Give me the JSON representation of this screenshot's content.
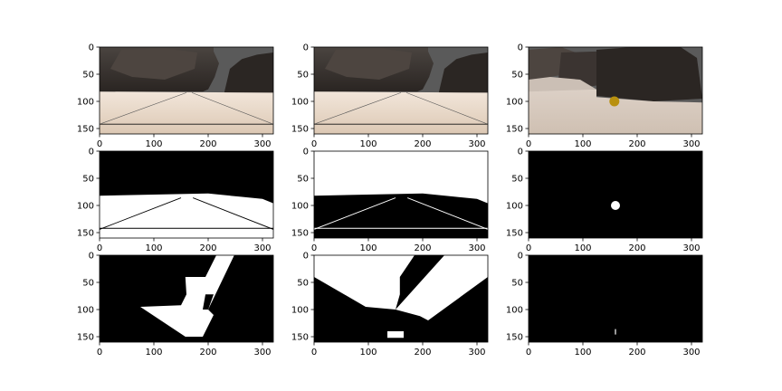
{
  "figure": {
    "panels": [
      {
        "row": 0,
        "col": 0,
        "content": "terrain-photo",
        "variant": "straight-grid"
      },
      {
        "row": 0,
        "col": 1,
        "content": "terrain-photo",
        "variant": "straight-grid"
      },
      {
        "row": 0,
        "col": 2,
        "content": "terrain-photo",
        "variant": "rock-sample"
      },
      {
        "row": 1,
        "col": 0,
        "content": "navigable-threshold"
      },
      {
        "row": 1,
        "col": 1,
        "content": "obstacle-threshold"
      },
      {
        "row": 1,
        "col": 2,
        "content": "rock-threshold"
      },
      {
        "row": 2,
        "col": 0,
        "content": "warped-navigable"
      },
      {
        "row": 2,
        "col": 1,
        "content": "warped-obstacle"
      },
      {
        "row": 2,
        "col": 2,
        "content": "warped-rock"
      }
    ],
    "x_ticks": [
      "0",
      "100",
      "200",
      "300"
    ],
    "x_tick_values": [
      0,
      100,
      200,
      300
    ],
    "y_ticks": [
      "0",
      "50",
      "100",
      "150"
    ],
    "y_tick_values": [
      0,
      50,
      100,
      150
    ],
    "image_width": 320,
    "image_height": 160,
    "colors": {
      "sky": "#5a5a5a",
      "rock_dark": "#2b2623",
      "rock_mid": "#4d4540",
      "ground": "#e6d2c0",
      "ground_light": "#f0e2d6",
      "sample": "#b8900f"
    }
  }
}
